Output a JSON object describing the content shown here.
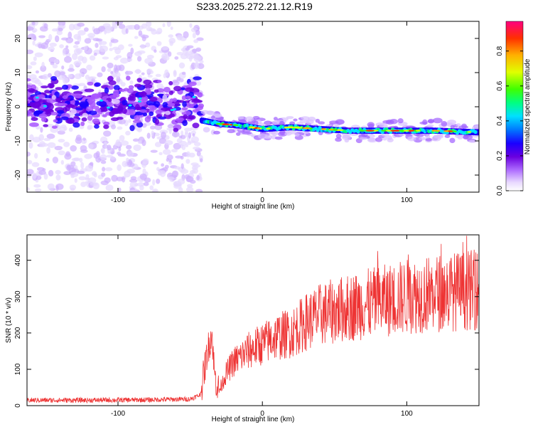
{
  "title": "S233.2025.272.21.12.R19",
  "chart_data": [
    {
      "type": "heatmap",
      "xlabel": "Height of straight line (km)",
      "ylabel": "Frequency (Hz)",
      "xlim": [
        -163,
        150
      ],
      "ylim": [
        -25,
        25
      ],
      "xticks": [
        -100,
        0,
        100
      ],
      "yticks": [
        -20,
        -10,
        0,
        10,
        20
      ],
      "colorbar": {
        "label": "Normalized spectral amplitude",
        "range": [
          0,
          0.97
        ],
        "ticks": [
          0.0,
          0.2,
          0.4,
          0.6,
          0.8
        ],
        "colors": [
          "#ffffff",
          "#e0c8ff",
          "#a855ff",
          "#6a00e0",
          "#1a00ff",
          "#0078ff",
          "#00e0ff",
          "#00ff80",
          "#40ff00",
          "#e0ff00",
          "#ffb000",
          "#ff3000",
          "#ff0080"
        ]
      },
      "regions": [
        {
          "name": "noise",
          "x": [
            -163,
            -42
          ],
          "center_hz": 1,
          "spread_hz": 25
        },
        {
          "name": "track",
          "x": [
            -42,
            150
          ],
          "points": [
            [
              -42,
              -4
            ],
            [
              -30,
              -5
            ],
            [
              -15,
              -5.5
            ],
            [
              0,
              -6.5
            ],
            [
              20,
              -6
            ],
            [
              40,
              -6.5
            ],
            [
              60,
              -7
            ],
            [
              80,
              -7
            ],
            [
              100,
              -7
            ],
            [
              120,
              -7
            ],
            [
              150,
              -7.5
            ]
          ]
        }
      ]
    },
    {
      "type": "line",
      "xlabel": "Height of straight line (km)",
      "ylabel": "SNR (10 * v/v)",
      "xlim": [
        -163,
        150
      ],
      "ylim": [
        0,
        470
      ],
      "xticks": [
        -100,
        0,
        100
      ],
      "yticks": [
        0,
        100,
        200,
        300,
        400
      ],
      "color": "#ee3333",
      "series": [
        {
          "x": [
            -163,
            -120,
            -80,
            -50,
            -43,
            -38,
            -35,
            -33,
            -30,
            -25,
            -20,
            -10,
            0,
            10,
            20,
            30,
            40,
            60,
            80,
            100,
            120,
            150
          ],
          "y": [
            15,
            15,
            16,
            18,
            30,
            150,
            200,
            80,
            40,
            90,
            120,
            150,
            170,
            190,
            200,
            230,
            250,
            270,
            285,
            300,
            310,
            320
          ]
        }
      ]
    }
  ]
}
